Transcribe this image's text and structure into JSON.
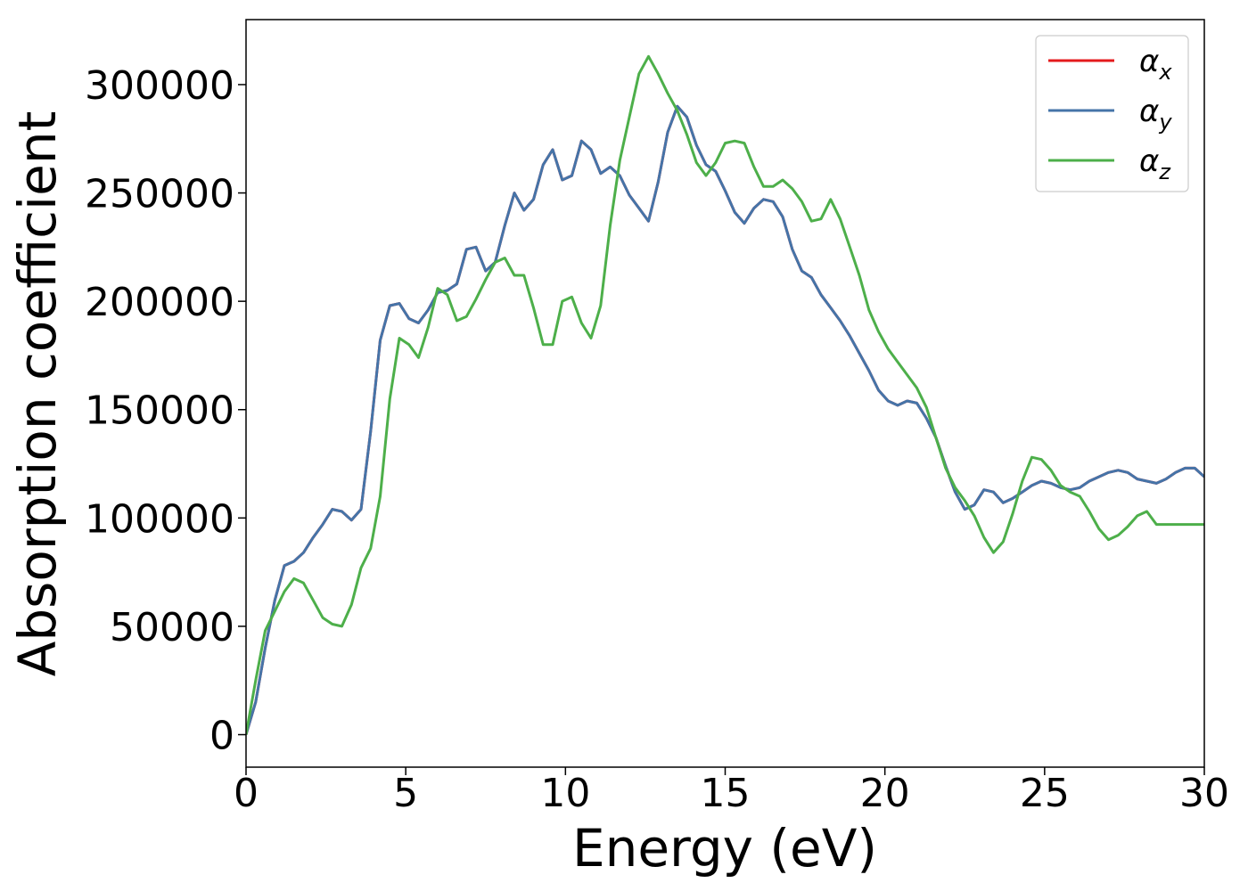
{
  "chart_data": {
    "type": "line",
    "xlabel": "Energy (eV)",
    "ylabel": "Absorption coefficient",
    "xlim": [
      0,
      30
    ],
    "ylim": [
      -15000,
      330000
    ],
    "x_ticks": [
      "0",
      "5",
      "10",
      "15",
      "20",
      "25",
      "30"
    ],
    "y_ticks": [
      "0",
      "50000",
      "100000",
      "150000",
      "200000",
      "250000",
      "300000"
    ],
    "grid": false,
    "legend_position": "top-right",
    "series": [
      {
        "name": "αx",
        "legend_base": "α",
        "legend_sub": "x",
        "color": "#e41a1c",
        "x": [
          0,
          0.3,
          0.6,
          0.9,
          1.2,
          1.5,
          1.8,
          2.1,
          2.4,
          2.7,
          3.0,
          3.3,
          3.6,
          3.9,
          4.2,
          4.5,
          4.8,
          5.1,
          5.4,
          5.7,
          6.0,
          6.3,
          6.6,
          6.9,
          7.2,
          7.5,
          7.8,
          8.1,
          8.4,
          8.7,
          9.0,
          9.3,
          9.6,
          9.9,
          10.2,
          10.5,
          10.8,
          11.1,
          11.4,
          11.7,
          12.0,
          12.3,
          12.6,
          12.9,
          13.2,
          13.5,
          13.8,
          14.1,
          14.4,
          14.7,
          15.0,
          15.3,
          15.6,
          15.9,
          16.2,
          16.5,
          16.8,
          17.1,
          17.4,
          17.7,
          18.0,
          18.3,
          18.6,
          18.9,
          19.2,
          19.5,
          19.8,
          20.1,
          20.4,
          20.7,
          21.0,
          21.3,
          21.6,
          21.9,
          22.2,
          22.5,
          22.8,
          23.1,
          23.4,
          23.7,
          24.0,
          24.3,
          24.6,
          24.9,
          25.2,
          25.5,
          25.8,
          26.1,
          26.4,
          26.7,
          27.0,
          27.3,
          27.6,
          27.9,
          28.2,
          28.5,
          28.8,
          29.1,
          29.4,
          29.7,
          30.0
        ],
        "values": [
          0,
          15000,
          40000,
          62000,
          78000,
          80000,
          84000,
          91000,
          97000,
          104000,
          103000,
          99000,
          104000,
          140000,
          182000,
          198000,
          199000,
          192000,
          190000,
          196000,
          204000,
          205000,
          208000,
          224000,
          225000,
          214000,
          218000,
          235000,
          250000,
          242000,
          247000,
          263000,
          270000,
          256000,
          258000,
          274000,
          270000,
          259000,
          262000,
          258000,
          249000,
          243000,
          237000,
          255000,
          278000,
          290000,
          285000,
          272000,
          263000,
          260000,
          251000,
          241000,
          236000,
          243000,
          247000,
          246000,
          239000,
          224000,
          214000,
          211000,
          203000,
          197000,
          191000,
          184000,
          176000,
          168000,
          159000,
          154000,
          152000,
          154000,
          153000,
          146000,
          137000,
          124000,
          112000,
          104000,
          106000,
          113000,
          112000,
          107000,
          109000,
          112000,
          115000,
          117000,
          116000,
          114000,
          113000,
          114000,
          117000,
          119000,
          121000,
          122000,
          121000,
          118000,
          117000,
          116000,
          118000,
          121000,
          123000,
          123000,
          119000
        ]
      },
      {
        "name": "αy",
        "legend_base": "α",
        "legend_sub": "y",
        "color": "#4574a8",
        "x": [
          0,
          0.3,
          0.6,
          0.9,
          1.2,
          1.5,
          1.8,
          2.1,
          2.4,
          2.7,
          3.0,
          3.3,
          3.6,
          3.9,
          4.2,
          4.5,
          4.8,
          5.1,
          5.4,
          5.7,
          6.0,
          6.3,
          6.6,
          6.9,
          7.2,
          7.5,
          7.8,
          8.1,
          8.4,
          8.7,
          9.0,
          9.3,
          9.6,
          9.9,
          10.2,
          10.5,
          10.8,
          11.1,
          11.4,
          11.7,
          12.0,
          12.3,
          12.6,
          12.9,
          13.2,
          13.5,
          13.8,
          14.1,
          14.4,
          14.7,
          15.0,
          15.3,
          15.6,
          15.9,
          16.2,
          16.5,
          16.8,
          17.1,
          17.4,
          17.7,
          18.0,
          18.3,
          18.6,
          18.9,
          19.2,
          19.5,
          19.8,
          20.1,
          20.4,
          20.7,
          21.0,
          21.3,
          21.6,
          21.9,
          22.2,
          22.5,
          22.8,
          23.1,
          23.4,
          23.7,
          24.0,
          24.3,
          24.6,
          24.9,
          25.2,
          25.5,
          25.8,
          26.1,
          26.4,
          26.7,
          27.0,
          27.3,
          27.6,
          27.9,
          28.2,
          28.5,
          28.8,
          29.1,
          29.4,
          29.7,
          30.0
        ],
        "values": [
          0,
          15000,
          40000,
          62000,
          78000,
          80000,
          84000,
          91000,
          97000,
          104000,
          103000,
          99000,
          104000,
          140000,
          182000,
          198000,
          199000,
          192000,
          190000,
          196000,
          204000,
          205000,
          208000,
          224000,
          225000,
          214000,
          218000,
          235000,
          250000,
          242000,
          247000,
          263000,
          270000,
          256000,
          258000,
          274000,
          270000,
          259000,
          262000,
          258000,
          249000,
          243000,
          237000,
          255000,
          278000,
          290000,
          285000,
          272000,
          263000,
          260000,
          251000,
          241000,
          236000,
          243000,
          247000,
          246000,
          239000,
          224000,
          214000,
          211000,
          203000,
          197000,
          191000,
          184000,
          176000,
          168000,
          159000,
          154000,
          152000,
          154000,
          153000,
          146000,
          137000,
          124000,
          112000,
          104000,
          106000,
          113000,
          112000,
          107000,
          109000,
          112000,
          115000,
          117000,
          116000,
          114000,
          113000,
          114000,
          117000,
          119000,
          121000,
          122000,
          121000,
          118000,
          117000,
          116000,
          118000,
          121000,
          123000,
          123000,
          119000
        ]
      },
      {
        "name": "αz",
        "legend_base": "α",
        "legend_sub": "z",
        "color": "#4daf4a",
        "x": [
          0,
          0.3,
          0.6,
          0.9,
          1.2,
          1.5,
          1.8,
          2.1,
          2.4,
          2.7,
          3.0,
          3.3,
          3.6,
          3.9,
          4.2,
          4.5,
          4.8,
          5.1,
          5.4,
          5.7,
          6.0,
          6.3,
          6.6,
          6.9,
          7.2,
          7.5,
          7.8,
          8.1,
          8.4,
          8.7,
          9.0,
          9.3,
          9.6,
          9.9,
          10.2,
          10.5,
          10.8,
          11.1,
          11.4,
          11.7,
          12.0,
          12.3,
          12.6,
          12.9,
          13.2,
          13.5,
          13.8,
          14.1,
          14.4,
          14.7,
          15.0,
          15.3,
          15.6,
          15.9,
          16.2,
          16.5,
          16.8,
          17.1,
          17.4,
          17.7,
          18.0,
          18.3,
          18.6,
          18.9,
          19.2,
          19.5,
          19.8,
          20.1,
          20.4,
          20.7,
          21.0,
          21.3,
          21.6,
          21.9,
          22.2,
          22.5,
          22.8,
          23.1,
          23.4,
          23.7,
          24.0,
          24.3,
          24.6,
          24.9,
          25.2,
          25.5,
          25.8,
          26.1,
          26.4,
          26.7,
          27.0,
          27.3,
          27.6,
          27.9,
          28.2,
          28.5,
          28.8,
          29.1,
          29.4,
          29.7,
          30.0
        ],
        "values": [
          0,
          25000,
          48000,
          57000,
          66000,
          72000,
          70000,
          62000,
          54000,
          51000,
          50000,
          60000,
          77000,
          86000,
          110000,
          155000,
          183000,
          180000,
          174000,
          188000,
          206000,
          203000,
          191000,
          193000,
          201000,
          210000,
          218000,
          220000,
          212000,
          212000,
          197000,
          180000,
          180000,
          200000,
          202000,
          190000,
          183000,
          198000,
          235000,
          265000,
          285000,
          305000,
          313000,
          305000,
          296000,
          288000,
          277000,
          264000,
          258000,
          264000,
          273000,
          274000,
          273000,
          262000,
          253000,
          253000,
          256000,
          252000,
          246000,
          237000,
          238000,
          247000,
          238000,
          225000,
          212000,
          196000,
          186000,
          178000,
          172000,
          166000,
          160000,
          151000,
          137000,
          123000,
          114000,
          108000,
          101000,
          91000,
          84000,
          89000,
          102000,
          117000,
          128000,
          127000,
          122000,
          115000,
          112000,
          110000,
          103000,
          95000,
          90000,
          92000,
          96000,
          101000,
          103000,
          97000,
          97000,
          97000,
          97000,
          97000,
          97000
        ]
      }
    ]
  }
}
